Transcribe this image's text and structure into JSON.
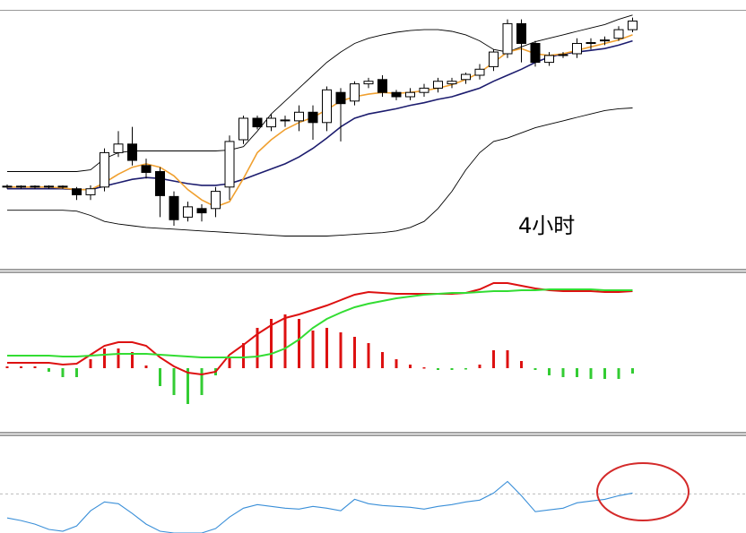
{
  "chart_data": [
    {
      "type": "candlestick",
      "annotation": "4小时",
      "open": [
        95,
        95,
        96,
        95,
        96,
        93,
        86,
        95,
        135,
        145,
        120,
        113,
        84,
        60,
        70,
        70,
        95,
        150,
        175,
        165,
        172,
        172,
        182,
        170,
        205,
        195,
        215,
        220,
        205,
        200,
        205,
        210,
        215,
        220,
        225,
        235,
        250,
        285,
        262,
        240,
        248,
        250,
        262,
        265,
        268,
        278
      ],
      "high": [
        98,
        97,
        97,
        97,
        97,
        95,
        97,
        140,
        160,
        165,
        128,
        118,
        90,
        78,
        75,
        95,
        155,
        178,
        178,
        180,
        178,
        190,
        190,
        212,
        210,
        218,
        222,
        225,
        208,
        210,
        215,
        222,
        222,
        228,
        238,
        255,
        290,
        290,
        265,
        252,
        252,
        268,
        268,
        270,
        282,
        292
      ],
      "low": [
        93,
        93,
        93,
        93,
        93,
        80,
        80,
        90,
        130,
        120,
        105,
        60,
        50,
        55,
        55,
        60,
        80,
        145,
        162,
        160,
        165,
        160,
        150,
        160,
        148,
        190,
        210,
        200,
        196,
        196,
        200,
        205,
        210,
        215,
        220,
        230,
        245,
        240,
        235,
        236,
        245,
        245,
        255,
        260,
        265,
        275
      ],
      "close": [
        96,
        96,
        95,
        96,
        95,
        86,
        93,
        135,
        145,
        126,
        112,
        85,
        57,
        72,
        65,
        90,
        148,
        175,
        165,
        175,
        173,
        182,
        170,
        208,
        192,
        215,
        218,
        205,
        200,
        205,
        210,
        218,
        218,
        226,
        232,
        252,
        285,
        262,
        240,
        248,
        249,
        262,
        263,
        266,
        278,
        288
      ],
      "up_color": "#ffffff",
      "down_color": "#000000",
      "lines": [
        {
          "color": "#000000",
          "values": [
            113,
            113,
            113,
            113,
            113,
            113,
            115,
            128,
            135,
            137,
            137,
            137,
            137,
            137,
            137,
            137,
            138,
            142,
            160,
            180,
            195,
            210,
            225,
            240,
            252,
            262,
            268,
            272,
            275,
            277,
            278,
            278,
            276,
            272,
            265,
            255,
            252,
            258,
            264,
            268,
            272,
            276,
            280,
            284,
            290,
            295
          ]
        },
        {
          "color": "#000000",
          "values": [
            68,
            68,
            68,
            68,
            68,
            67,
            62,
            55,
            52,
            50,
            48,
            47,
            46,
            45,
            44,
            43,
            42,
            41,
            40,
            39,
            38,
            38,
            38,
            38,
            39,
            40,
            41,
            42,
            44,
            48,
            55,
            70,
            90,
            115,
            135,
            148,
            152,
            158,
            164,
            168,
            172,
            176,
            180,
            184,
            186,
            187
          ]
        },
        {
          "color": "#1c1c6e",
          "values": [
            93,
            93,
            93,
            93,
            93,
            92,
            92,
            96,
            100,
            104,
            106,
            105,
            102,
            99,
            97,
            97,
            99,
            104,
            110,
            116,
            122,
            130,
            140,
            152,
            165,
            175,
            180,
            183,
            186,
            190,
            193,
            197,
            200,
            205,
            210,
            218,
            225,
            232,
            240,
            246,
            250,
            252,
            254,
            256,
            260,
            265
          ]
        },
        {
          "color": "#f0a030",
          "values": [
            95,
            95,
            95,
            95,
            94,
            92,
            92,
            100,
            110,
            118,
            122,
            118,
            108,
            92,
            80,
            72,
            78,
            105,
            135,
            150,
            162,
            170,
            176,
            185,
            195,
            200,
            203,
            205,
            204,
            205,
            207,
            210,
            214,
            220,
            228,
            240,
            252,
            256,
            250,
            248,
            250,
            254,
            258,
            262,
            266,
            272
          ]
        }
      ],
      "ylim": [
        0,
        300
      ]
    },
    {
      "type": "macd",
      "values": [
        2,
        2,
        2,
        -4,
        -10,
        -10,
        10,
        22,
        22,
        18,
        3,
        -20,
        -30,
        -40,
        -30,
        -8,
        12,
        28,
        45,
        55,
        60,
        55,
        42,
        45,
        40,
        35,
        28,
        18,
        10,
        4,
        1,
        -2,
        -2,
        -1,
        4,
        20,
        20,
        8,
        -2,
        -8,
        -10,
        -10,
        -12,
        -12,
        -12,
        -6
      ],
      "up_color": "#dd1111",
      "down_color": "#33cc33",
      "lines": [
        {
          "color": "#dd1111",
          "values": [
            6,
            6,
            6,
            6,
            4,
            5,
            15,
            25,
            29,
            29,
            25,
            12,
            2,
            -5,
            -7,
            -4,
            15,
            26,
            38,
            48,
            56,
            60,
            65,
            70,
            76,
            82,
            85,
            84,
            83,
            83,
            83,
            83,
            83,
            84,
            88,
            95,
            95,
            92,
            89,
            87,
            86,
            86,
            86,
            85,
            85,
            86
          ]
        },
        {
          "color": "#33dd33",
          "values": [
            14,
            14,
            14,
            14,
            13,
            13,
            14,
            15,
            16,
            16,
            16,
            15,
            14,
            13,
            12,
            12,
            12,
            12,
            13,
            16,
            22,
            32,
            45,
            55,
            62,
            68,
            72,
            75,
            78,
            80,
            82,
            83,
            84,
            84,
            85,
            86,
            86,
            87,
            87,
            88,
            88,
            88,
            88,
            87,
            87,
            87
          ]
        }
      ],
      "ylim": [
        -71,
        105
      ]
    },
    {
      "type": "line",
      "values": [
        17,
        14,
        10,
        4,
        2,
        8,
        25,
        35,
        33,
        22,
        10,
        2,
        0,
        0,
        0,
        5,
        18,
        28,
        32,
        30,
        28,
        27,
        30,
        28,
        25,
        38,
        33,
        31,
        30,
        29,
        27,
        30,
        32,
        35,
        37,
        45,
        58,
        42,
        24,
        26,
        28,
        34,
        36,
        38,
        42,
        45
      ],
      "color": "#3a8fd8",
      "reference_line": 44,
      "ylim": [
        0,
        108
      ]
    }
  ]
}
